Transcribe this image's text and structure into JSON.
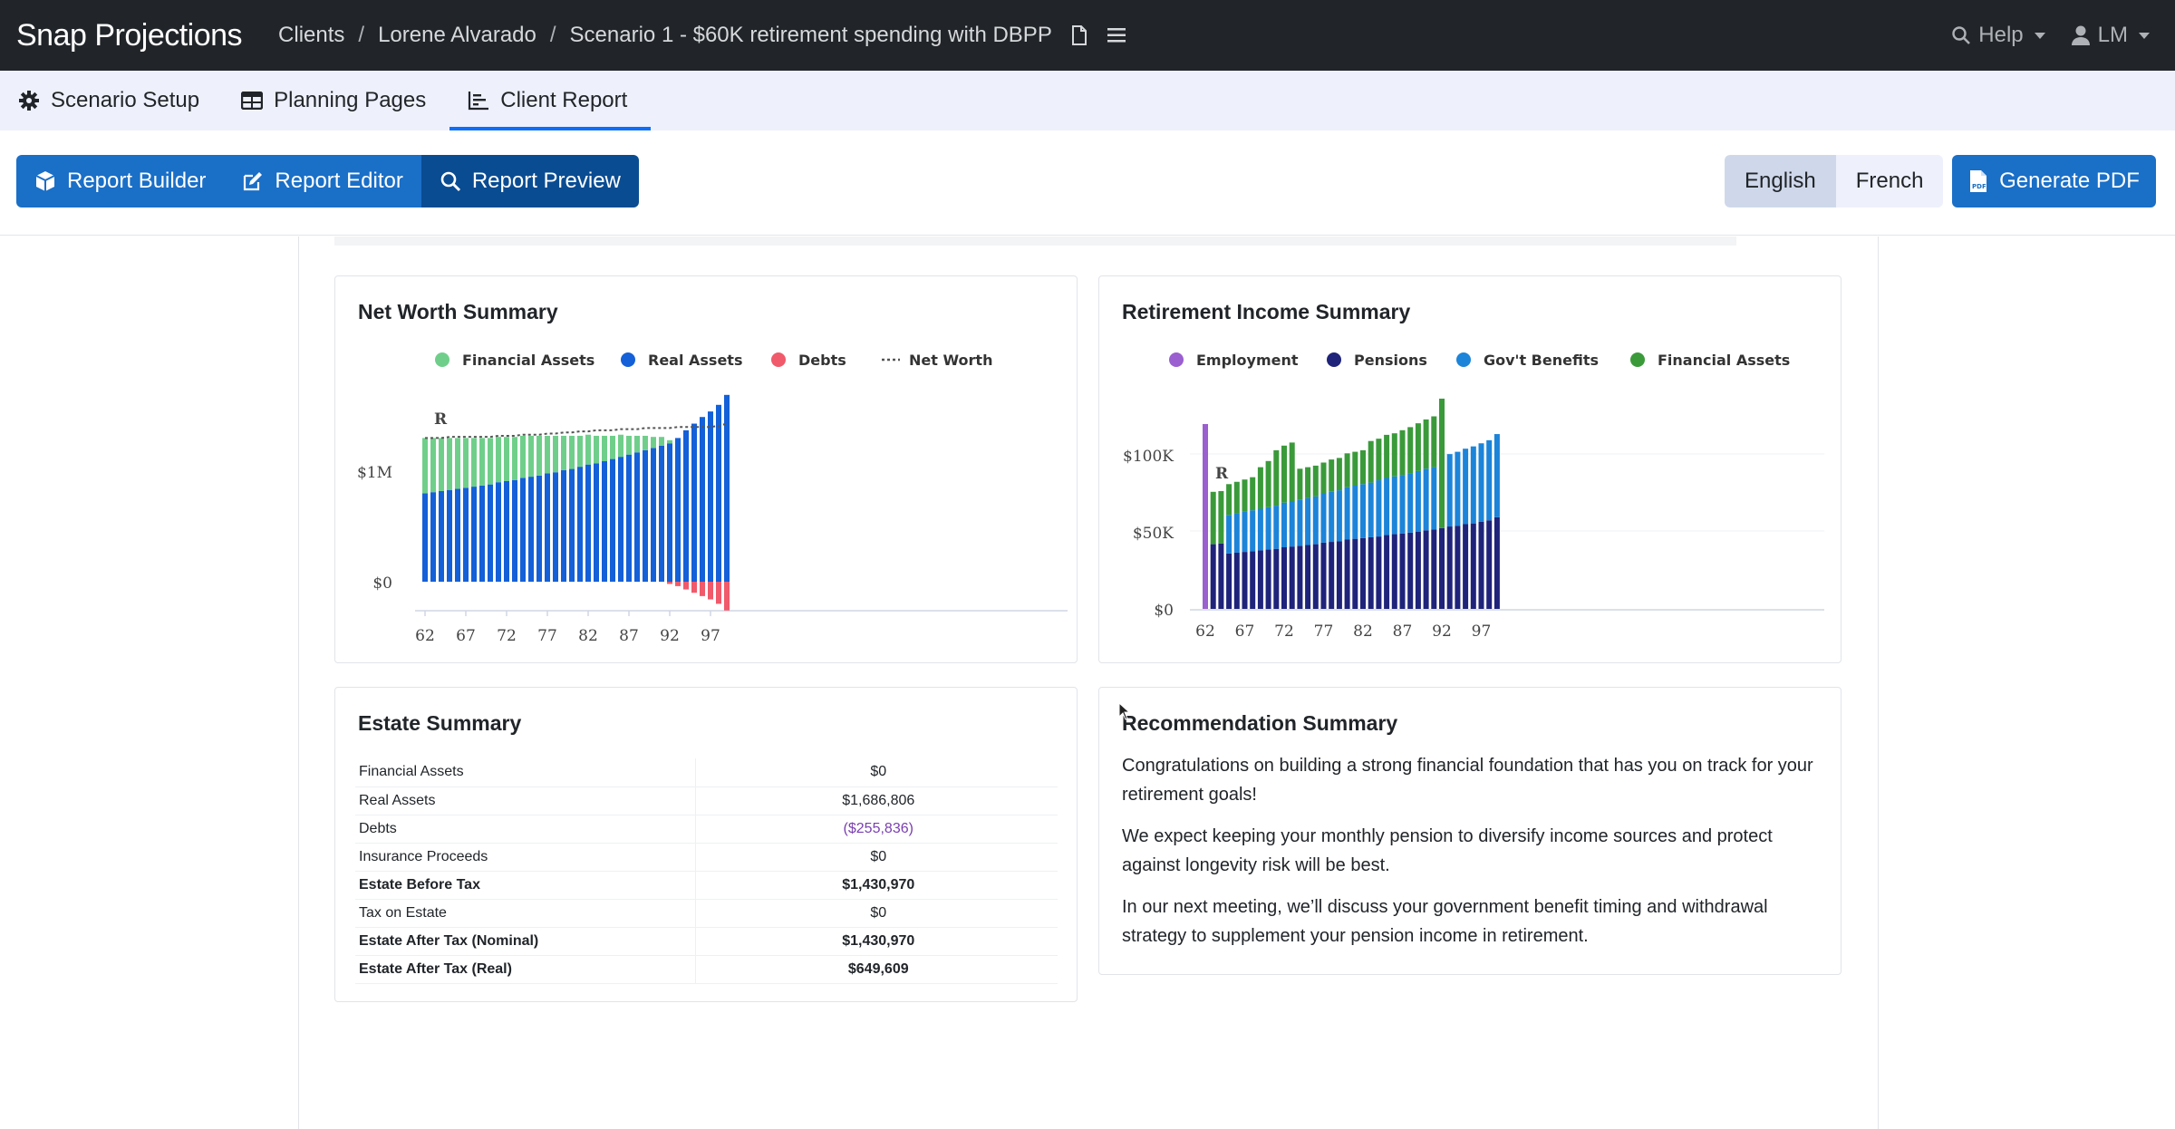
{
  "app": {
    "name": "Snap Projections"
  },
  "breadcrumb": [
    "Clients",
    "Lorene Alvarado",
    "Scenario 1 - $60K retirement spending with DBPP"
  ],
  "topbar": {
    "help": "Help",
    "user": "LM"
  },
  "tabs": [
    {
      "label": "Scenario Setup",
      "icon": "gear-icon"
    },
    {
      "label": "Planning Pages",
      "icon": "table-icon"
    },
    {
      "label": "Client Report",
      "icon": "chart-icon",
      "active": true
    }
  ],
  "toolbar": {
    "builder": "Report Builder",
    "editor": "Report Editor",
    "preview": "Report Preview",
    "english": "English",
    "french": "French",
    "pdf": "Generate PDF"
  },
  "net_worth": {
    "title": "Net Worth Summary",
    "legend": [
      "Financial Assets",
      "Real Assets",
      "Debts",
      "Net Worth"
    ],
    "colors": {
      "financial": "#6fcf8a",
      "real": "#1460d8",
      "debts": "#f05a6a",
      "networth": "#555555"
    },
    "marker": "R",
    "yticks": [
      "$0",
      "$1M"
    ],
    "xticks": [
      "62",
      "67",
      "72",
      "77",
      "82",
      "87",
      "92",
      "97"
    ]
  },
  "retirement_income": {
    "title": "Retirement Income Summary",
    "legend": [
      "Employment",
      "Pensions",
      "Gov't Benefits",
      "Financial Assets"
    ],
    "colors": {
      "employment": "#9b5fd0",
      "pensions": "#1f237a",
      "govt": "#1c84d9",
      "financial": "#3a9a3a"
    },
    "marker": "R",
    "yticks": [
      "$0",
      "$50K",
      "$100K"
    ],
    "xticks": [
      "62",
      "67",
      "72",
      "77",
      "82",
      "87",
      "92",
      "97"
    ]
  },
  "chart_data": [
    {
      "type": "bar",
      "title": "Net Worth Summary",
      "x": [
        62,
        63,
        64,
        65,
        66,
        67,
        68,
        69,
        70,
        71,
        72,
        73,
        74,
        75,
        76,
        77,
        78,
        79,
        80,
        81,
        82,
        83,
        84,
        85,
        86,
        87,
        88,
        89,
        90,
        91,
        92,
        93,
        94,
        95,
        96,
        97,
        98,
        99
      ],
      "ylim": [
        -0.25,
        1.9
      ],
      "yunit": "$M",
      "series": [
        {
          "name": "Real Assets",
          "values": [
            0.8,
            0.81,
            0.82,
            0.83,
            0.84,
            0.85,
            0.86,
            0.87,
            0.88,
            0.9,
            0.91,
            0.92,
            0.94,
            0.95,
            0.96,
            0.98,
            0.99,
            1.01,
            1.02,
            1.04,
            1.06,
            1.07,
            1.09,
            1.11,
            1.13,
            1.15,
            1.17,
            1.19,
            1.21,
            1.23,
            1.25,
            1.3,
            1.37,
            1.43,
            1.49,
            1.54,
            1.6,
            1.69
          ]
        },
        {
          "name": "Financial Assets",
          "values": [
            0.5,
            0.49,
            0.48,
            0.47,
            0.46,
            0.45,
            0.44,
            0.43,
            0.42,
            0.41,
            0.4,
            0.39,
            0.38,
            0.37,
            0.36,
            0.34,
            0.33,
            0.31,
            0.3,
            0.28,
            0.27,
            0.25,
            0.23,
            0.21,
            0.2,
            0.17,
            0.15,
            0.13,
            0.1,
            0.08,
            0.03,
            0,
            0,
            0,
            0,
            0,
            0,
            0
          ]
        },
        {
          "name": "Debts",
          "values": [
            0,
            0,
            0,
            0,
            0,
            0,
            0,
            0,
            0,
            0,
            0,
            0,
            0,
            0,
            0,
            0,
            0,
            0,
            0,
            0,
            0,
            0,
            0,
            0,
            0,
            0,
            0,
            0,
            0,
            0,
            -0.02,
            -0.04,
            -0.07,
            -0.1,
            -0.13,
            -0.16,
            -0.2,
            -0.26
          ]
        },
        {
          "name": "Net Worth",
          "values": [
            1.3,
            1.3,
            1.3,
            1.31,
            1.31,
            1.31,
            1.31,
            1.31,
            1.31,
            1.32,
            1.32,
            1.32,
            1.33,
            1.33,
            1.33,
            1.34,
            1.34,
            1.35,
            1.35,
            1.36,
            1.36,
            1.37,
            1.37,
            1.37,
            1.38,
            1.38,
            1.38,
            1.39,
            1.39,
            1.39,
            1.39,
            1.4,
            1.4,
            1.4,
            1.4,
            1.4,
            1.41,
            1.43
          ]
        }
      ]
    },
    {
      "type": "bar",
      "title": "Retirement Income Summary",
      "x": [
        62,
        63,
        64,
        65,
        66,
        67,
        68,
        69,
        70,
        71,
        72,
        73,
        74,
        75,
        76,
        77,
        78,
        79,
        80,
        81,
        82,
        83,
        84,
        85,
        86,
        87,
        88,
        89,
        90,
        91,
        92,
        93,
        94,
        95,
        96,
        97,
        98,
        99
      ],
      "ylim": [
        0,
        120000
      ],
      "series": [
        {
          "name": "Employment",
          "values": [
            120000,
            0,
            0,
            0,
            0,
            0,
            0,
            0,
            0,
            0,
            0,
            0,
            0,
            0,
            0,
            0,
            0,
            0,
            0,
            0,
            0,
            0,
            0,
            0,
            0,
            0,
            0,
            0,
            0,
            0,
            0,
            0,
            0,
            0,
            0,
            0,
            0,
            0
          ]
        },
        {
          "name": "Pensions",
          "values": [
            0,
            42000,
            42500,
            36000,
            36500,
            37000,
            37500,
            38000,
            38500,
            39000,
            40000,
            40500,
            41000,
            41500,
            42000,
            43000,
            43500,
            44000,
            45000,
            45500,
            46000,
            46500,
            47000,
            48000,
            48500,
            49000,
            49500,
            50000,
            51000,
            51500,
            52500,
            53500,
            54000,
            55000,
            55500,
            56500,
            57500,
            59500
          ]
        },
        {
          "name": "Gov't Benefits",
          "values": [
            0,
            0,
            0,
            25000,
            25500,
            26000,
            26500,
            27000,
            27500,
            28000,
            29000,
            29500,
            30000,
            30500,
            31000,
            32000,
            32500,
            33000,
            34000,
            34500,
            35000,
            35500,
            36500,
            37000,
            37500,
            38000,
            38500,
            39500,
            40000,
            40500,
            0,
            47000,
            48000,
            49000,
            50000,
            51000,
            52000,
            54000
          ]
        },
        {
          "name": "Financial Assets",
          "values": [
            0,
            34000,
            34000,
            20000,
            20500,
            21000,
            21500,
            27000,
            30000,
            36000,
            37000,
            38000,
            20000,
            20000,
            20000,
            20000,
            21000,
            21000,
            22000,
            22000,
            22000,
            27000,
            27000,
            28000,
            28000,
            29000,
            30000,
            31000,
            32000,
            33000,
            84000,
            0,
            0,
            0,
            0,
            0,
            0,
            0
          ]
        }
      ]
    }
  ],
  "estate": {
    "title": "Estate Summary",
    "rows": [
      {
        "label": "Financial Assets",
        "value": "$0",
        "bold": false
      },
      {
        "label": "Real Assets",
        "value": "$1,686,806",
        "bold": false
      },
      {
        "label": "Debts",
        "value": "($255,836)",
        "bold": false,
        "negative": true
      },
      {
        "label": "Insurance Proceeds",
        "value": "$0",
        "bold": false
      },
      {
        "label": "Estate Before Tax",
        "value": "$1,430,970",
        "bold": true
      },
      {
        "label": "Tax on Estate",
        "value": "$0",
        "bold": false
      },
      {
        "label": "Estate After Tax (Nominal)",
        "value": "$1,430,970",
        "bold": true
      },
      {
        "label": "Estate After Tax (Real)",
        "value": "$649,609",
        "bold": true
      }
    ]
  },
  "recommendation": {
    "title": "Recommendation Summary",
    "paragraphs": [
      "Congratulations on building a strong financial foundation that has you on track for your retirement goals!",
      "We expect keeping your monthly pension to diversify income sources and protect against longevity risk will be best.",
      "In our next meeting, we’ll discuss your government benefit timing and withdrawal strategy to supplement your pension income in retirement."
    ]
  }
}
